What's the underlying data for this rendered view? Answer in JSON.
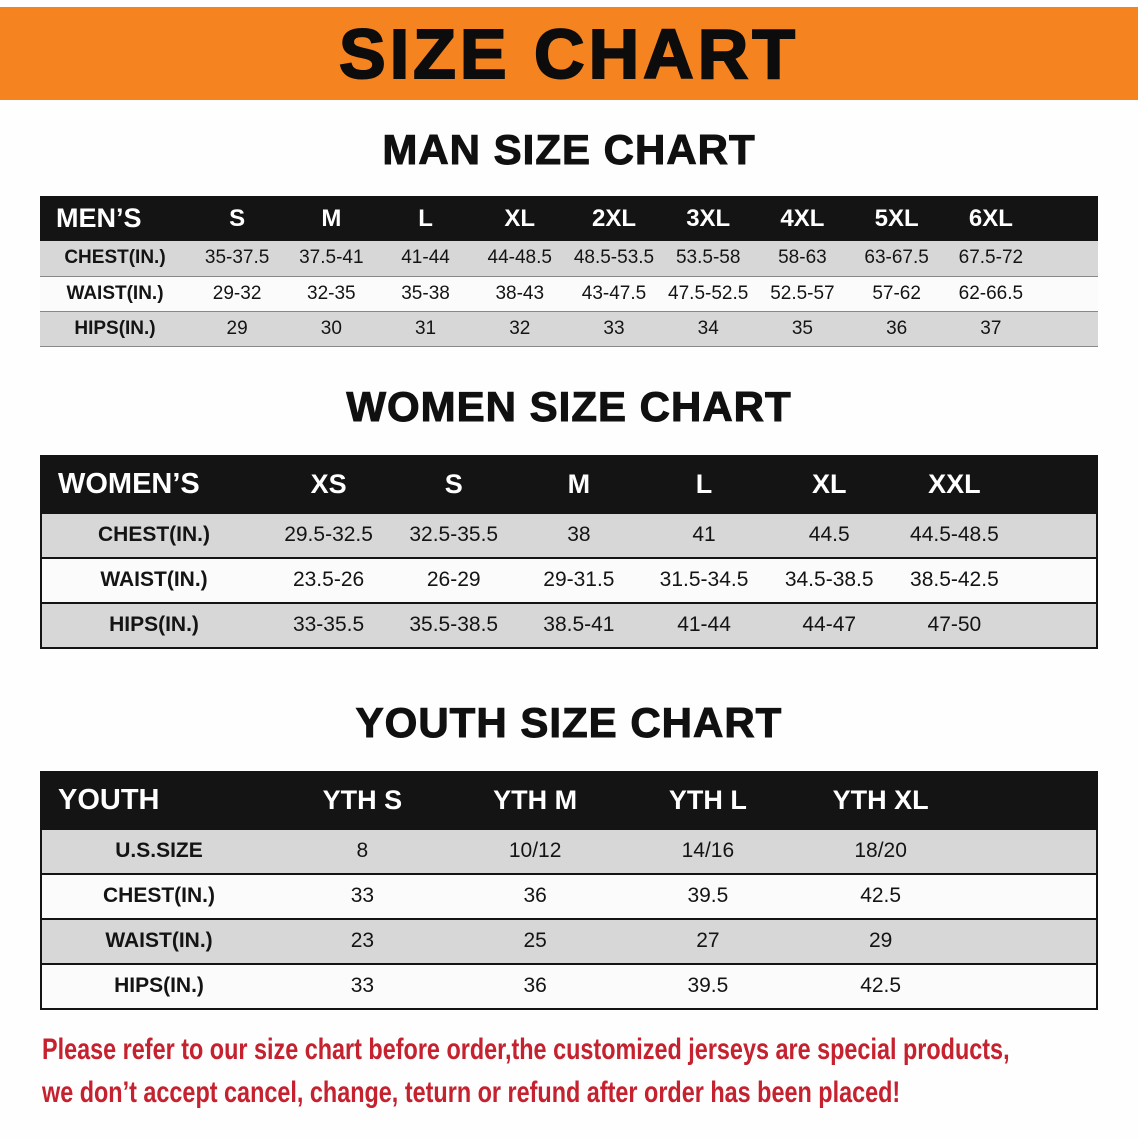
{
  "banner": {
    "title": "SIZE CHART",
    "bg_color": "#f5831f",
    "text_color": "#0c0c0c"
  },
  "sections": [
    {
      "id": "men",
      "title": "MAN SIZE CHART",
      "table": {
        "corner_label": "MEN’S",
        "columns": [
          "S",
          "M",
          "L",
          "XL",
          "2XL",
          "3XL",
          "4XL",
          "5XL",
          "6XL"
        ],
        "rows": [
          {
            "label": "CHEST(IN.)",
            "values": [
              "35-37.5",
              "37.5-41",
              "41-44",
              "44-48.5",
              "48.5-53.5",
              "53.5-58",
              "58-63",
              "63-67.5",
              "67.5-72"
            ]
          },
          {
            "label": "WAIST(IN.)",
            "values": [
              "29-32",
              "32-35",
              "35-38",
              "38-43",
              "43-47.5",
              "47.5-52.5",
              "52.5-57",
              "57-62",
              "62-66.5"
            ]
          },
          {
            "label": "HIPS(IN.)",
            "values": [
              "29",
              "30",
              "31",
              "32",
              "33",
              "34",
              "35",
              "36",
              "37"
            ]
          }
        ]
      }
    },
    {
      "id": "women",
      "title": "WOMEN SIZE CHART",
      "table": {
        "corner_label": "WOMEN’S",
        "columns": [
          "XS",
          "S",
          "M",
          "L",
          "XL",
          "XXL"
        ],
        "rows": [
          {
            "label": "CHEST(IN.)",
            "values": [
              "29.5-32.5",
              "32.5-35.5",
              "38",
              "41",
              "44.5",
              "44.5-48.5"
            ]
          },
          {
            "label": "WAIST(IN.)",
            "values": [
              "23.5-26",
              "26-29",
              "29-31.5",
              "31.5-34.5",
              "34.5-38.5",
              "38.5-42.5"
            ]
          },
          {
            "label": "HIPS(IN.)",
            "values": [
              "33-35.5",
              "35.5-38.5",
              "38.5-41",
              "41-44",
              "44-47",
              "47-50"
            ]
          }
        ]
      }
    },
    {
      "id": "youth",
      "title": "YOUTH SIZE CHART",
      "table": {
        "corner_label": "YOUTH",
        "columns": [
          "YTH S",
          "YTH M",
          "YTH L",
          "YTH XL"
        ],
        "rows": [
          {
            "label": "U.S.SIZE",
            "values": [
              "8",
              "10/12",
              "14/16",
              "18/20"
            ]
          },
          {
            "label": "CHEST(IN.)",
            "values": [
              "33",
              "36",
              "39.5",
              "42.5"
            ]
          },
          {
            "label": "WAIST(IN.)",
            "values": [
              "23",
              "25",
              "27",
              "29"
            ]
          },
          {
            "label": "HIPS(IN.)",
            "values": [
              "33",
              "36",
              "39.5",
              "42.5"
            ]
          }
        ]
      }
    }
  ],
  "footer": {
    "line1": "Please refer to our size chart before order,the customized jerseys are special products,",
    "line2": "we don’t accept cancel, change, teturn or refund after order has been placed!",
    "text_color": "#c5212e"
  },
  "colors": {
    "banner_orange": "#f5831f",
    "table_header_black": "#141414",
    "row_shade_gray": "#d7d7d7",
    "footer_red": "#c5212e"
  }
}
